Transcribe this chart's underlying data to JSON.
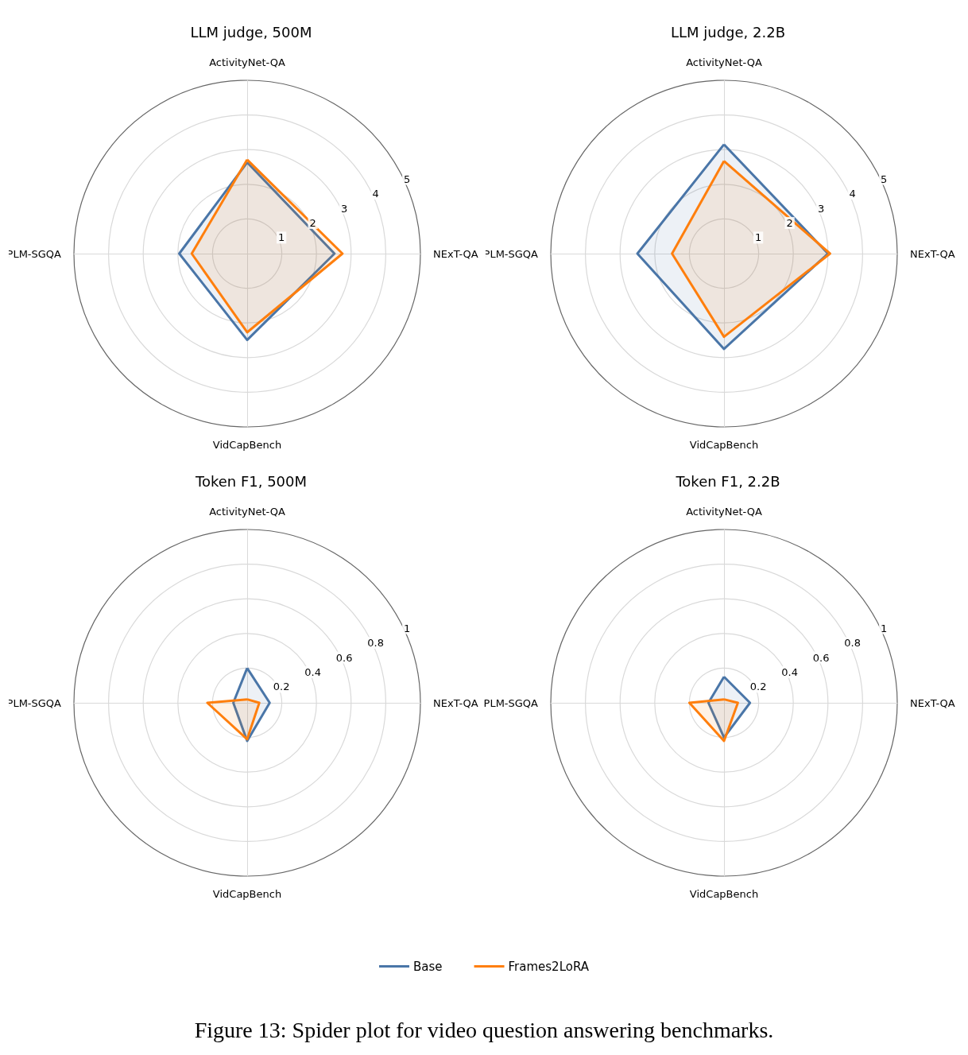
{
  "chart_data": [
    {
      "type": "radar",
      "title": "LLM judge, 500M",
      "categories": [
        "ActivityNet-QA",
        "NExT-QA",
        "VidCapBench",
        "PLM-SGQA"
      ],
      "ylim": [
        0,
        5
      ],
      "yticks": [
        1,
        2,
        3,
        4,
        5
      ],
      "grid": true,
      "series": [
        {
          "color": "#4a76a8",
          "values": [
            2.63,
            2.52,
            2.49,
            1.96
          ]
        },
        {
          "color": "#ff7f0e",
          "values": [
            2.71,
            2.75,
            2.27,
            1.6
          ]
        }
      ]
    },
    {
      "type": "radar",
      "title": "LLM judge, 2.2B",
      "categories": [
        "ActivityNet-QA",
        "NExT-QA",
        "VidCapBench",
        "PLM-SGQA"
      ],
      "ylim": [
        0,
        5
      ],
      "yticks": [
        1,
        2,
        3,
        4,
        5
      ],
      "grid": true,
      "series": [
        {
          "color": "#4a76a8",
          "values": [
            3.15,
            3.0,
            2.75,
            2.5
          ]
        },
        {
          "color": "#ff7f0e",
          "values": [
            2.67,
            3.06,
            2.4,
            1.5
          ]
        }
      ]
    },
    {
      "type": "radar",
      "title": "Token F1, 500M",
      "categories": [
        "ActivityNet-QA",
        "NExT-QA",
        "VidCapBench",
        "PLM-SGQA"
      ],
      "ylim": [
        0,
        1
      ],
      "yticks": [
        0.2,
        0.4,
        0.6,
        0.8,
        1
      ],
      "grid": true,
      "series": [
        {
          "color": "#4a76a8",
          "values": [
            0.2,
            0.13,
            0.22,
            0.08
          ]
        },
        {
          "color": "#ff7f0e",
          "values": [
            0.02,
            0.07,
            0.21,
            0.23
          ]
        }
      ]
    },
    {
      "type": "radar",
      "title": "Token F1, 2.2B",
      "categories": [
        "ActivityNet-QA",
        "NExT-QA",
        "VidCapBench",
        "PLM-SGQA"
      ],
      "ylim": [
        0,
        1
      ],
      "yticks": [
        0.2,
        0.4,
        0.6,
        0.8,
        1
      ],
      "grid": true,
      "legend": "bottom",
      "annotations": [
        "Figure 13: Spider plot for video question answering benchmarks."
      ],
      "series": [
        {
          "name": "Base",
          "color": "#4a76a8",
          "values": [
            0.15,
            0.15,
            0.2,
            0.09
          ]
        },
        {
          "name": "Frames2LoRA",
          "color": "#ff7f0e",
          "values": [
            0.02,
            0.08,
            0.22,
            0.2
          ]
        }
      ]
    }
  ]
}
